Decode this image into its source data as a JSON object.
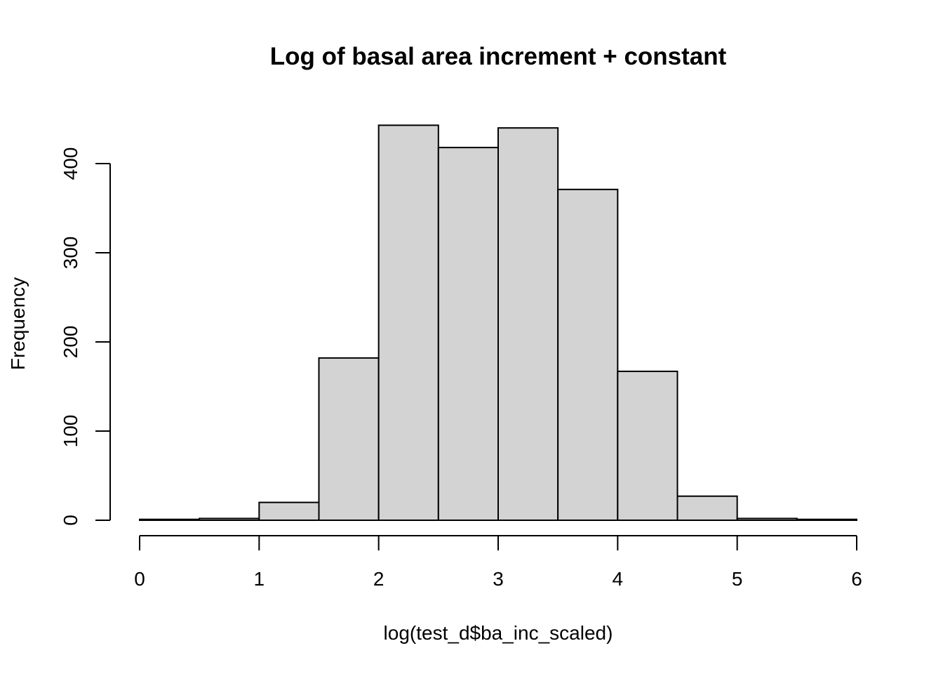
{
  "chart_data": {
    "type": "bar",
    "title": "Log of basal area increment + constant",
    "xlabel": "log(test_d$ba_inc_scaled)",
    "ylabel": "Frequency",
    "bin_edges": [
      0,
      0.5,
      1,
      1.5,
      2,
      2.5,
      3,
      3.5,
      4,
      4.5,
      5,
      5.5,
      6
    ],
    "values": [
      1,
      2,
      20,
      182,
      443,
      418,
      440,
      371,
      167,
      27,
      2,
      1
    ],
    "xlim": [
      0,
      6
    ],
    "ylim": [
      0,
      443
    ],
    "x_ticks": [
      0,
      1,
      2,
      3,
      4,
      5,
      6
    ],
    "y_ticks": [
      0,
      100,
      200,
      300,
      400
    ],
    "grid": false,
    "legend": "none",
    "bar_color": "#d3d3d3",
    "border_color": "#000000"
  }
}
